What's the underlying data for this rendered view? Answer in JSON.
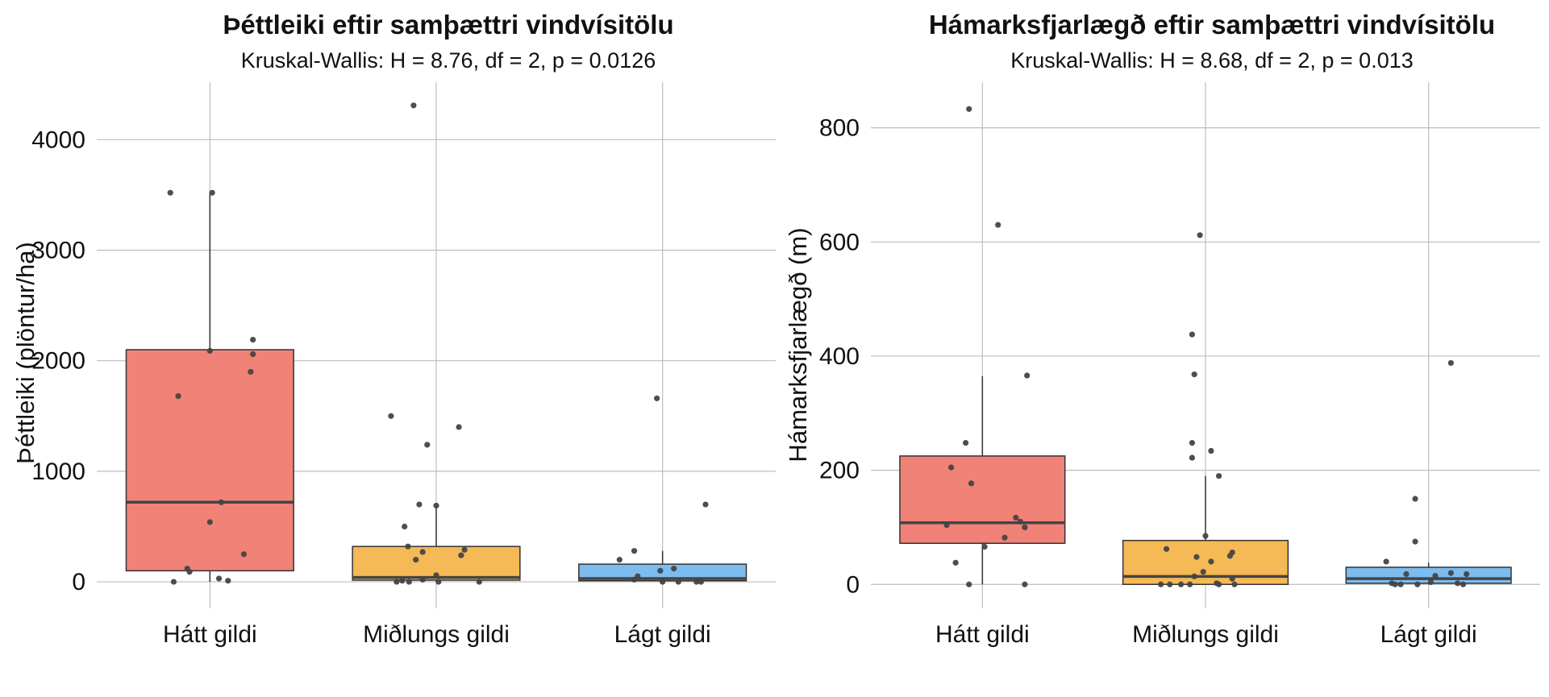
{
  "chart_data": [
    {
      "type": "boxplot",
      "title": "Þéttleiki eftir samþættri vindvísitölu",
      "subtitle": "Kruskal-Wallis: H = 8.76, df = 2, p = 0.0126",
      "xlabel": "",
      "ylabel": "Þéttleiki (plöntur/ha)",
      "ylim": [
        -240,
        4520
      ],
      "yticks": [
        0,
        1000,
        2000,
        3000,
        4000
      ],
      "grid": true,
      "legend": "none",
      "categories": [
        "Hátt gildi",
        "Miðlungs gildi",
        "Lágt gildi"
      ],
      "colors": [
        "#f08278",
        "#f5b955",
        "#7dbcef"
      ],
      "boxes": [
        {
          "q1": 100,
          "median": 720,
          "q3": 2100,
          "whisker_low": 0,
          "whisker_high": 3520
        },
        {
          "q1": 15,
          "median": 40,
          "q3": 320,
          "whisker_low": 0,
          "whisker_high": 690
        },
        {
          "q1": 10,
          "median": 30,
          "q3": 160,
          "whisker_low": 0,
          "whisker_high": 280
        }
      ],
      "points": [
        [
          {
            "x": -0.35,
            "y": 3520
          },
          {
            "x": 0.02,
            "y": 3520
          },
          {
            "x": 0.38,
            "y": 2190
          },
          {
            "x": 0.0,
            "y": 2090
          },
          {
            "x": 0.38,
            "y": 2060
          },
          {
            "x": 0.36,
            "y": 1900
          },
          {
            "x": -0.28,
            "y": 1680
          },
          {
            "x": 0.1,
            "y": 720
          },
          {
            "x": 0.0,
            "y": 540
          },
          {
            "x": 0.3,
            "y": 250
          },
          {
            "x": -0.2,
            "y": 120
          },
          {
            "x": -0.18,
            "y": 90
          },
          {
            "x": 0.08,
            "y": 30
          },
          {
            "x": 0.16,
            "y": 10
          },
          {
            "x": -0.32,
            "y": 0
          }
        ],
        [
          {
            "x": -0.2,
            "y": 4310
          },
          {
            "x": -0.4,
            "y": 1500
          },
          {
            "x": 0.2,
            "y": 1400
          },
          {
            "x": -0.08,
            "y": 1240
          },
          {
            "x": -0.15,
            "y": 700
          },
          {
            "x": 0.0,
            "y": 690
          },
          {
            "x": -0.28,
            "y": 500
          },
          {
            "x": -0.25,
            "y": 320
          },
          {
            "x": -0.12,
            "y": 270
          },
          {
            "x": 0.25,
            "y": 290
          },
          {
            "x": 0.22,
            "y": 240
          },
          {
            "x": -0.18,
            "y": 200
          },
          {
            "x": 0.0,
            "y": 60
          },
          {
            "x": -0.35,
            "y": 0
          },
          {
            "x": -0.3,
            "y": 10
          },
          {
            "x": -0.24,
            "y": 0
          },
          {
            "x": -0.12,
            "y": 20
          },
          {
            "x": 0.02,
            "y": 0
          },
          {
            "x": 0.38,
            "y": 0
          }
        ],
        [
          {
            "x": -0.05,
            "y": 1660
          },
          {
            "x": 0.38,
            "y": 700
          },
          {
            "x": -0.25,
            "y": 280
          },
          {
            "x": -0.38,
            "y": 200
          },
          {
            "x": 0.1,
            "y": 120
          },
          {
            "x": -0.02,
            "y": 100
          },
          {
            "x": -0.22,
            "y": 50
          },
          {
            "x": -0.25,
            "y": 20
          },
          {
            "x": 0.0,
            "y": 0
          },
          {
            "x": 0.14,
            "y": 0
          },
          {
            "x": 0.3,
            "y": 0
          },
          {
            "x": 0.34,
            "y": 0
          }
        ]
      ]
    },
    {
      "type": "boxplot",
      "title": "Hámarksfjarlægð eftir samþættri vindvísitölu",
      "subtitle": "Kruskal-Wallis: H = 8.68, df = 2, p = 0.013",
      "xlabel": "",
      "ylabel": "Hámarksfjarlægð (m)",
      "ylim": [
        -42,
        880
      ],
      "yticks": [
        0,
        200,
        400,
        600,
        800
      ],
      "grid": true,
      "legend": "none",
      "categories": [
        "Hátt gildi",
        "Miðlungs gildi",
        "Lágt gildi"
      ],
      "colors": [
        "#f08278",
        "#f5b955",
        "#7dbcef"
      ],
      "boxes": [
        {
          "q1": 72,
          "median": 108,
          "q3": 225,
          "whisker_low": 0,
          "whisker_high": 365
        },
        {
          "q1": 0,
          "median": 14,
          "q3": 77,
          "whisker_low": 0,
          "whisker_high": 190
        },
        {
          "q1": 2,
          "median": 10,
          "q3": 30,
          "whisker_low": 0,
          "whisker_high": 38
        }
      ],
      "points": [
        [
          {
            "x": -0.12,
            "y": 833
          },
          {
            "x": 0.14,
            "y": 630
          },
          {
            "x": 0.4,
            "y": 366
          },
          {
            "x": -0.15,
            "y": 248
          },
          {
            "x": -0.28,
            "y": 205
          },
          {
            "x": -0.1,
            "y": 177
          },
          {
            "x": 0.3,
            "y": 117
          },
          {
            "x": 0.34,
            "y": 110
          },
          {
            "x": -0.32,
            "y": 104
          },
          {
            "x": 0.38,
            "y": 100
          },
          {
            "x": 0.2,
            "y": 82
          },
          {
            "x": 0.02,
            "y": 66
          },
          {
            "x": -0.24,
            "y": 38
          },
          {
            "x": 0.38,
            "y": 0
          },
          {
            "x": -0.12,
            "y": 0
          }
        ],
        [
          {
            "x": -0.05,
            "y": 612
          },
          {
            "x": -0.12,
            "y": 438
          },
          {
            "x": -0.1,
            "y": 368
          },
          {
            "x": -0.12,
            "y": 248
          },
          {
            "x": 0.05,
            "y": 234
          },
          {
            "x": -0.12,
            "y": 222
          },
          {
            "x": 0.12,
            "y": 190
          },
          {
            "x": 0.0,
            "y": 85
          },
          {
            "x": -0.35,
            "y": 62
          },
          {
            "x": 0.24,
            "y": 56
          },
          {
            "x": 0.22,
            "y": 50
          },
          {
            "x": -0.08,
            "y": 48
          },
          {
            "x": 0.05,
            "y": 40
          },
          {
            "x": -0.02,
            "y": 22
          },
          {
            "x": -0.1,
            "y": 14
          },
          {
            "x": 0.24,
            "y": 10
          },
          {
            "x": 0.1,
            "y": 2
          },
          {
            "x": -0.4,
            "y": 0
          },
          {
            "x": -0.32,
            "y": 0
          },
          {
            "x": -0.22,
            "y": 0
          },
          {
            "x": -0.14,
            "y": 0
          },
          {
            "x": 0.12,
            "y": 0
          },
          {
            "x": 0.26,
            "y": 0
          }
        ]
      ],
      "_": null
    }
  ]
}
